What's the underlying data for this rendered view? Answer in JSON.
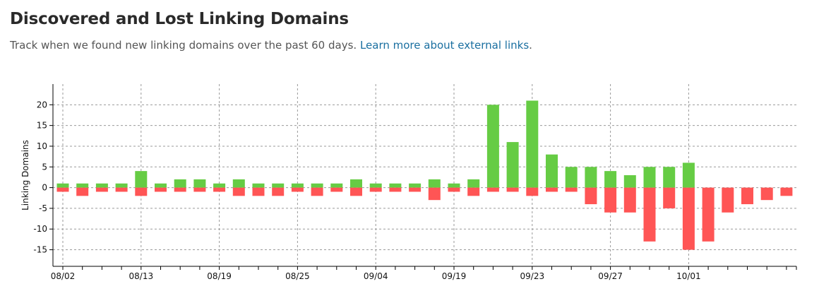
{
  "header": {
    "title": "Discovered and Lost Linking Domains",
    "subtitle": "Track when we found new linking domains over the past 60 days.",
    "link_text": "Learn more about external links",
    "link_suffix": "."
  },
  "colors": {
    "discovered": "#66cc44",
    "lost": "#ff5555",
    "grid": "#9a9a9a",
    "axis": "#000000"
  },
  "chart_data": {
    "type": "bar",
    "stacking": "diverging",
    "ylabel": "Linking Domains",
    "xlabel": "",
    "title": "",
    "ylim": [
      -19,
      25
    ],
    "yticks": [
      -15,
      -10,
      -5,
      0,
      5,
      10,
      15,
      20
    ],
    "grid": true,
    "x_tick_labels": [
      {
        "label": "08/02",
        "slot": 0
      },
      {
        "label": "08/13",
        "slot": 4
      },
      {
        "label": "08/19",
        "slot": 8
      },
      {
        "label": "08/25",
        "slot": 12
      },
      {
        "label": "09/04",
        "slot": 16
      },
      {
        "label": "09/19",
        "slot": 20
      },
      {
        "label": "09/23",
        "slot": 24
      },
      {
        "label": "09/27",
        "slot": 28
      },
      {
        "label": "10/01",
        "slot": 32
      }
    ],
    "series": [
      {
        "key": "discovered",
        "values": [
          1,
          1,
          1,
          1,
          4,
          1,
          2,
          2,
          1,
          2,
          1,
          1,
          1,
          1,
          1,
          2,
          1,
          1,
          1,
          2,
          1,
          2,
          20,
          11,
          21,
          8,
          5,
          5,
          4,
          3,
          5,
          5,
          6,
          0,
          0,
          0,
          0,
          0
        ]
      },
      {
        "key": "lost",
        "values": [
          -1,
          -2,
          -1,
          -1,
          -2,
          -1,
          -1,
          -1,
          -1,
          -2,
          -2,
          -2,
          -1,
          -2,
          -1,
          -2,
          -1,
          -1,
          -1,
          -3,
          -1,
          -2,
          -1,
          -1,
          -2,
          -1,
          -1,
          -4,
          -6,
          -6,
          -13,
          -5,
          -15,
          -13,
          -6,
          -4,
          -3,
          -2
        ]
      }
    ]
  }
}
